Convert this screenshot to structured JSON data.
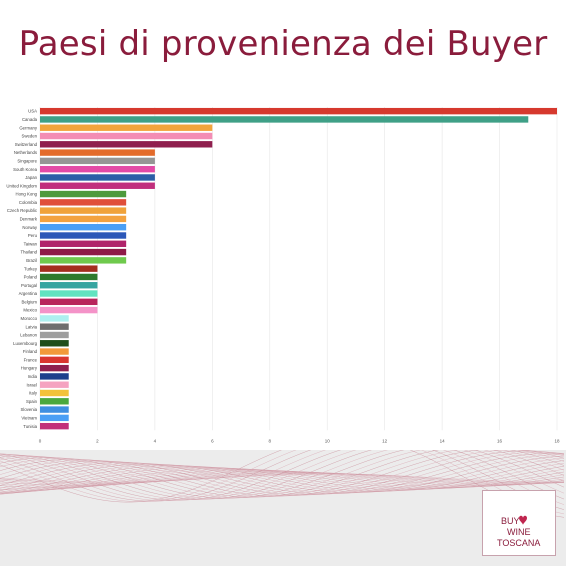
{
  "header": {
    "title": "Paesi di provenienza dei Buyer"
  },
  "logo": {
    "line1": "BUY",
    "line2": "WINE",
    "line3": "TOSCANA",
    "color": "#8a1c3c"
  },
  "chart_data": {
    "type": "bar",
    "orientation": "horizontal",
    "title": "Paesi di provenienza dei Buyer",
    "xlabel": "",
    "ylabel": "",
    "xlim": [
      0,
      18
    ],
    "x_ticks": [
      "0",
      "2",
      "4",
      "6",
      "8",
      "10",
      "12",
      "14",
      "16",
      "18"
    ],
    "grid": true,
    "categories": [
      "USA",
      "Canada",
      "Germany",
      "Sweden",
      "Switzerland",
      "Netherlands",
      "Singapore",
      "South Korea",
      "Japan",
      "United Kingdom",
      "Hong Kong",
      "Colombia",
      "Czech Republic",
      "Denmark",
      "Norway",
      "Peru",
      "Taiwan",
      "Thailand",
      "Brazil",
      "Turkey",
      "Poland",
      "Portugal",
      "Argentina",
      "Belgium",
      "Mexico",
      "Morocco",
      "Latvia",
      "Lebanon",
      "Luxembourg",
      "Finland",
      "France",
      "Hungary",
      "India",
      "Israel",
      "Italy",
      "Spain",
      "Slovenia",
      "Vietnam",
      "Tunisia"
    ],
    "values": [
      18,
      17,
      6,
      6,
      6,
      4,
      4,
      4,
      4,
      4,
      3,
      3,
      3,
      3,
      3,
      3,
      3,
      3,
      3,
      2,
      2,
      2,
      2,
      2,
      2,
      1,
      1,
      1,
      1,
      1,
      1,
      1,
      1,
      1,
      1,
      1,
      1,
      1,
      1
    ],
    "colors": [
      "#d6392e",
      "#3fa087",
      "#f2a43c",
      "#f38db4",
      "#8f1f4e",
      "#e36b2b",
      "#959595",
      "#e34aa6",
      "#2b5ea7",
      "#c12f7d",
      "#4e9a3c",
      "#e04f3a",
      "#f0a23a",
      "#f3a23f",
      "#4a9ff5",
      "#2c58b8",
      "#b0246a",
      "#8e1b47",
      "#6fca4d",
      "#a42e1e",
      "#2f7a2c",
      "#36a5a0",
      "#62e3c0",
      "#b8245b",
      "#f493c8",
      "#aef0f0",
      "#6e6e6e",
      "#9e9e9e",
      "#1f4e1a",
      "#f29a3a",
      "#d9362f",
      "#8f1f4e",
      "#1c3f8c",
      "#f5a3c0",
      "#f3c23a",
      "#4ba83d",
      "#3f8fe0",
      "#4a9ff5",
      "#c22f7a"
    ]
  }
}
